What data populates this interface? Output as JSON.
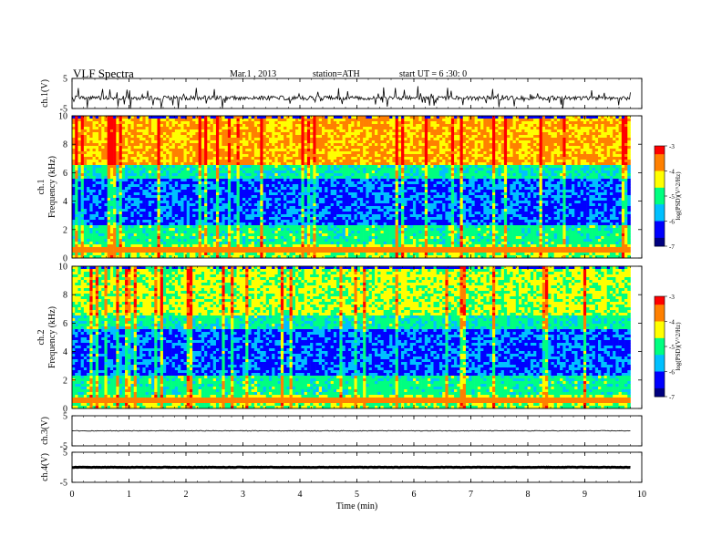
{
  "header": {
    "title": "VLF Spectra",
    "date": "Mar.1 , 2013",
    "station": "station=ATH",
    "start": "start UT = 6 :30: 0"
  },
  "colors": {
    "colormap": [
      "#000080",
      "#0000ff",
      "#00c0ff",
      "#00ff80",
      "#ffff00",
      "#ff8000",
      "#ff0000",
      "#ffffff"
    ]
  },
  "chart_data": [
    {
      "type": "line",
      "name": "ch.1 waveform",
      "ylabel": "ch.1(V)",
      "ylim": [
        -5,
        5
      ],
      "yticks": [
        5,
        -5
      ],
      "xlim": [
        0,
        10
      ],
      "trace_level": -1.5,
      "noise_amplitude": "spiky, up to about ±3.5 V"
    },
    {
      "type": "heatmap",
      "name": "ch.1 spectrogram",
      "ylabel": "ch.1 Frequency (kHz)",
      "ylim": [
        0,
        10
      ],
      "yticks": [
        0,
        2,
        4,
        6,
        8,
        10
      ],
      "xlim": [
        0,
        10
      ],
      "data_extent_min": 9.8,
      "colorbar": {
        "label": "log(PSD)(V^2/Hz)",
        "range": [
          -7,
          -3
        ],
        "ticks": [
          -3,
          -4,
          -5,
          -6,
          -7
        ]
      }
    },
    {
      "type": "heatmap",
      "name": "ch.2 spectrogram",
      "ylabel": "ch.2 Frequency (kHz)",
      "ylim": [
        0,
        10
      ],
      "yticks": [
        0,
        2,
        4,
        6,
        8,
        10
      ],
      "xlim": [
        0,
        10
      ],
      "data_extent_min": 9.8,
      "colorbar": {
        "label": "log(PSD)(V^2/Hz)",
        "range": [
          -7,
          -3
        ],
        "ticks": [
          -3,
          -4,
          -5,
          -6,
          -7
        ]
      }
    },
    {
      "type": "line",
      "name": "ch.3 waveform",
      "ylabel": "ch.3(V)",
      "ylim": [
        -5,
        5
      ],
      "yticks": [
        5,
        -5
      ],
      "xlim": [
        0,
        10
      ],
      "trace_level": 0
    },
    {
      "type": "line",
      "name": "ch.4 waveform",
      "ylabel": "ch.4(V)",
      "ylim": [
        -5,
        5
      ],
      "yticks": [
        5,
        -5
      ],
      "xlim": [
        0,
        10
      ],
      "trace_level": 0
    }
  ],
  "xaxis": {
    "label": "Time (min)",
    "ticks": [
      0,
      1,
      2,
      3,
      4,
      5,
      6,
      7,
      8,
      9,
      10
    ]
  }
}
